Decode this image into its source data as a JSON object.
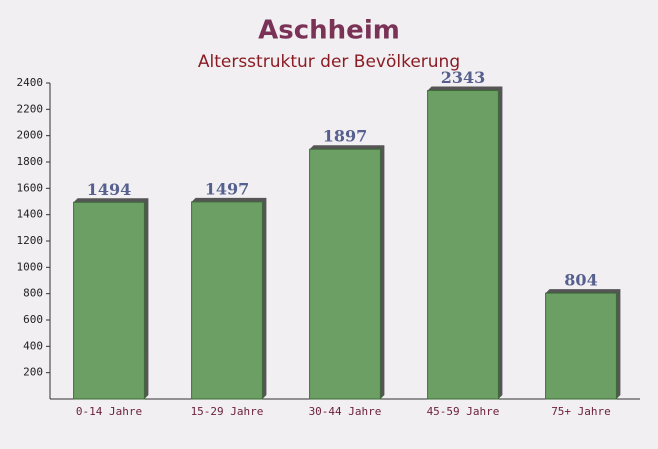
{
  "chart_data": {
    "type": "bar",
    "title": "Aschheim",
    "subtitle": "Altersstruktur der Bevölkerung",
    "categories": [
      "0-14 Jahre",
      "15-29 Jahre",
      "30-44 Jahre",
      "45-59 Jahre",
      "75+ Jahre"
    ],
    "values": [
      1494,
      1497,
      1897,
      2343,
      804
    ],
    "color": "#6b9f63",
    "ylim": [
      0,
      2400
    ],
    "yticks": [
      200,
      400,
      600,
      800,
      1000,
      1200,
      1400,
      1600,
      1800,
      2000,
      2200,
      2400
    ],
    "grid": false
  }
}
